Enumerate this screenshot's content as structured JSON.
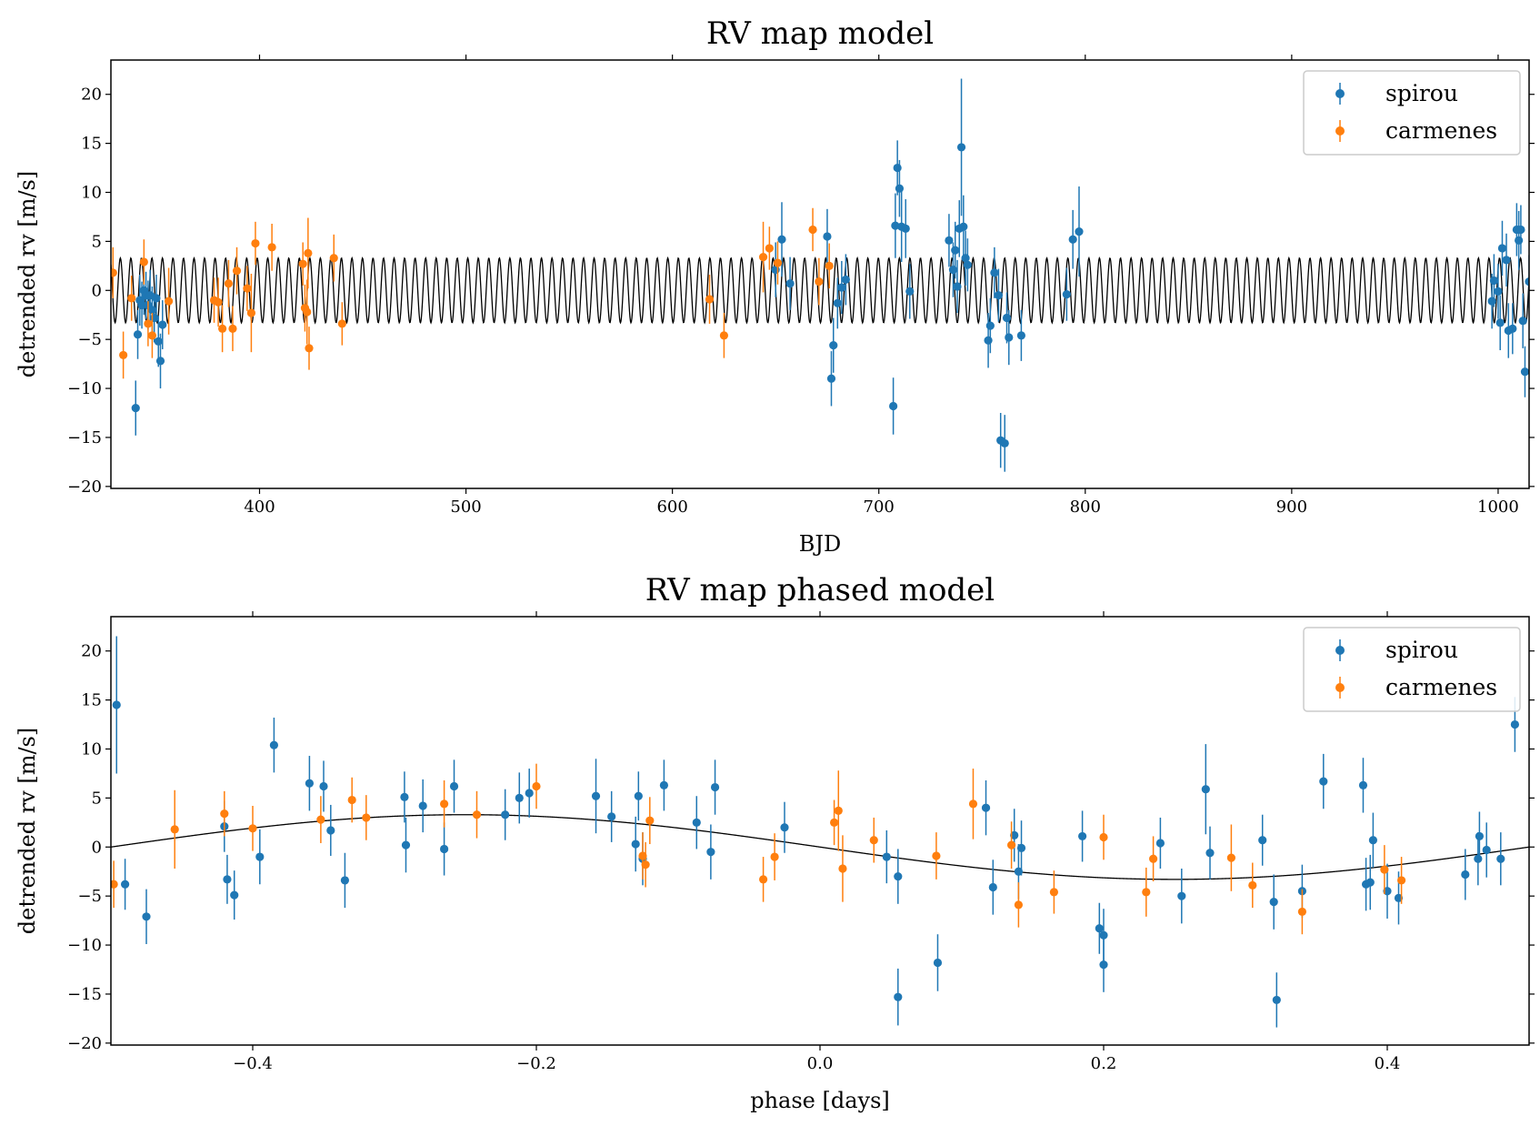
{
  "colors": {
    "spirou": "#1f77b4",
    "carmenes": "#ff7f0e",
    "model": "#000000"
  },
  "chart_data": [
    {
      "type": "scatter",
      "title": "RV map model",
      "xlabel": "BJD",
      "ylabel": "detrended rv [m/s]",
      "xlim": [
        328,
        1015
      ],
      "ylim": [
        -20.2,
        23.5
      ],
      "xticks": [
        400,
        500,
        600,
        700,
        800,
        900,
        1000
      ],
      "yticks": [
        -20,
        -15,
        -10,
        -5,
        0,
        5,
        10,
        15,
        20
      ],
      "legend_position": "top-right",
      "model": {
        "amplitude": 3.3,
        "period": 5.1,
        "t0": 331.3,
        "label": ""
      },
      "series": [
        {
          "name": "spirou",
          "color": "#1f77b4",
          "points": [
            [
              340,
              -12,
              2.8
            ],
            [
              341,
              -4.5,
              2.5
            ],
            [
              342,
              -1,
              2.6
            ],
            [
              343,
              -1.5,
              2.4
            ],
            [
              344,
              0,
              2.5
            ],
            [
              345,
              -0.5,
              2.4
            ],
            [
              346,
              -1.5,
              2.5
            ],
            [
              347,
              -0.5,
              2.6
            ],
            [
              348,
              -2,
              2.4
            ],
            [
              349,
              -2.8,
              2.5
            ],
            [
              350,
              -0.8,
              2.4
            ],
            [
              351,
              -5.2,
              2.6
            ],
            [
              352,
              -7.2,
              2.8
            ],
            [
              353,
              -3.5,
              2.5
            ],
            [
              650,
              2.1,
              2.8
            ],
            [
              653,
              5.2,
              3.8
            ],
            [
              657,
              0.7,
              2.7
            ],
            [
              675,
              5.5,
              2.8
            ],
            [
              677,
              -9,
              2.8
            ],
            [
              678,
              -5.6,
              2.8
            ],
            [
              680,
              -1.3,
              2.6
            ],
            [
              682,
              0.3,
              2.7
            ],
            [
              684,
              1.1,
              2.6
            ],
            [
              707,
              -11.8,
              2.9
            ],
            [
              708,
              6.6,
              3.3
            ],
            [
              709,
              12.5,
              2.8
            ],
            [
              710,
              10.4,
              2.9
            ],
            [
              711,
              6.5,
              3.6
            ],
            [
              713,
              6.3,
              3.0
            ],
            [
              715,
              -0.1,
              2.8
            ],
            [
              734,
              5.1,
              2.7
            ],
            [
              736,
              2.1,
              2.8
            ],
            [
              737,
              4.1,
              2.9
            ],
            [
              738,
              0.4,
              2.7
            ],
            [
              739,
              6.3,
              2.9
            ],
            [
              740,
              14.6,
              7.0
            ],
            [
              741,
              6.5,
              3.2
            ],
            [
              742,
              3.3,
              2.8
            ],
            [
              743,
              2.6,
              2.7
            ],
            [
              753,
              -5.1,
              2.8
            ],
            [
              754,
              -3.6,
              2.8
            ],
            [
              756,
              1.8,
              2.6
            ],
            [
              758,
              -0.5,
              2.7
            ],
            [
              759,
              -15.3,
              2.8
            ],
            [
              761,
              -15.6,
              2.9
            ],
            [
              762,
              -2.8,
              2.6
            ],
            [
              763,
              -4.8,
              2.8
            ],
            [
              769,
              -4.6,
              2.6
            ],
            [
              791,
              -0.4,
              2.7
            ],
            [
              794,
              5.2,
              3.0
            ],
            [
              797,
              6,
              4.6
            ],
            [
              997,
              -1.1,
              2.8
            ],
            [
              998,
              1,
              2.7
            ],
            [
              1000,
              -0.1,
              2.8
            ],
            [
              1001,
              -3.3,
              2.8
            ],
            [
              1002,
              4.3,
              2.8
            ],
            [
              1004,
              3.1,
              2.7
            ],
            [
              1005,
              -4.1,
              2.8
            ],
            [
              1007,
              -3.9,
              2.6
            ],
            [
              1009,
              6.2,
              2.7
            ],
            [
              1010,
              5.1,
              3.0
            ],
            [
              1011,
              6.2,
              2.5
            ],
            [
              1012,
              -3.1,
              2.8
            ],
            [
              1013,
              -8.3,
              2.6
            ],
            [
              1015,
              0.9,
              2.7
            ]
          ]
        },
        {
          "name": "carmenes",
          "color": "#ff7f0e",
          "points": [
            [
              329,
              1.8,
              2.6
            ],
            [
              334,
              -6.6,
              2.4
            ],
            [
              338,
              -0.8,
              2.3
            ],
            [
              344,
              2.9,
              2.3
            ],
            [
              346,
              -3.4,
              2.3
            ],
            [
              348,
              -4.6,
              2.3
            ],
            [
              356,
              -1.1,
              3.4
            ],
            [
              378,
              -1,
              2.3
            ],
            [
              380,
              -1.2,
              2.5
            ],
            [
              382,
              -3.9,
              2.4
            ],
            [
              385,
              0.7,
              2.4
            ],
            [
              387,
              -3.9,
              2.3
            ],
            [
              389,
              2,
              2.4
            ],
            [
              394,
              0.2,
              2.3
            ],
            [
              396,
              -2.3,
              4.0
            ],
            [
              398,
              4.8,
              2.2
            ],
            [
              406,
              4.4,
              2.4
            ],
            [
              421,
              2.7,
              2.2
            ],
            [
              422,
              -1.8,
              2.4
            ],
            [
              423,
              -2.2,
              3.3
            ],
            [
              423.5,
              3.8,
              3.6
            ],
            [
              424,
              -5.9,
              2.2
            ],
            [
              436,
              3.3,
              2.4
            ],
            [
              440,
              -3.4,
              2.2
            ],
            [
              618,
              -0.9,
              2.5
            ],
            [
              625,
              -4.6,
              2.3
            ],
            [
              644,
              3.4,
              3.6
            ],
            [
              647,
              4.3,
              2.2
            ],
            [
              651,
              2.8,
              2.2
            ],
            [
              668,
              6.2,
              2.2
            ],
            [
              671,
              0.9,
              2.4
            ],
            [
              676,
              2.5,
              2.3
            ]
          ]
        }
      ]
    },
    {
      "type": "scatter",
      "title": "RV map phased model",
      "xlabel": "phase [days]",
      "ylabel": "detrended rv [m/s]",
      "xlim": [
        -0.5,
        0.5
      ],
      "ylim": [
        -20.2,
        23.5
      ],
      "xticks": [
        -0.4,
        -0.2,
        0.0,
        0.2,
        0.4
      ],
      "xtick_labels": [
        "−0.4",
        "−0.2",
        "0.0",
        "0.2",
        "0.4"
      ],
      "yticks": [
        -20,
        -15,
        -10,
        -5,
        0,
        5,
        10,
        15,
        20
      ],
      "legend_position": "top-right",
      "model": {
        "amplitude": 3.3,
        "period": 1.0,
        "t0": -0.5,
        "label": ""
      },
      "series": [
        {
          "name": "spirou",
          "color": "#1f77b4",
          "points": [
            [
              -0.496,
              14.5,
              7.0
            ],
            [
              -0.49,
              -3.8,
              2.6
            ],
            [
              -0.475,
              -7.1,
              2.8
            ],
            [
              -0.42,
              2.1,
              2.6
            ],
            [
              -0.418,
              -3.3,
              2.5
            ],
            [
              -0.413,
              -4.9,
              2.5
            ],
            [
              -0.395,
              -1,
              2.8
            ],
            [
              -0.385,
              10.4,
              2.8
            ],
            [
              -0.36,
              6.5,
              2.8
            ],
            [
              -0.35,
              6.2,
              2.6
            ],
            [
              -0.345,
              1.7,
              2.6
            ],
            [
              -0.335,
              -3.4,
              2.8
            ],
            [
              -0.293,
              5.1,
              2.6
            ],
            [
              -0.292,
              0.2,
              2.8
            ],
            [
              -0.28,
              4.2,
              2.7
            ],
            [
              -0.265,
              -0.2,
              2.7
            ],
            [
              -0.258,
              6.2,
              2.7
            ],
            [
              -0.222,
              3.3,
              2.6
            ],
            [
              -0.212,
              5,
              2.6
            ],
            [
              -0.205,
              5.5,
              2.5
            ],
            [
              -0.158,
              5.2,
              3.8
            ],
            [
              -0.147,
              3.1,
              2.6
            ],
            [
              -0.13,
              0.3,
              2.8
            ],
            [
              -0.128,
              5.2,
              2.5
            ],
            [
              -0.125,
              -1.2,
              2.7
            ],
            [
              -0.11,
              6.3,
              2.6
            ],
            [
              -0.087,
              2.5,
              2.7
            ],
            [
              -0.077,
              -0.5,
              2.8
            ],
            [
              -0.074,
              6.1,
              2.8
            ],
            [
              -0.025,
              2,
              2.6
            ],
            [
              0.047,
              -1,
              2.7
            ],
            [
              0.055,
              -3,
              2.8
            ],
            [
              0.055,
              -15.3,
              2.9
            ],
            [
              0.083,
              -11.8,
              2.9
            ],
            [
              0.117,
              4,
              2.8
            ],
            [
              0.122,
              -4.1,
              2.8
            ],
            [
              0.137,
              1.2,
              2.7
            ],
            [
              0.14,
              -2.5,
              2.8
            ],
            [
              0.142,
              -0.1,
              2.8
            ],
            [
              0.185,
              1.1,
              2.6
            ],
            [
              0.197,
              -8.3,
              2.6
            ],
            [
              0.2,
              -9,
              2.7
            ],
            [
              0.2,
              -12,
              2.8
            ],
            [
              0.24,
              0.4,
              2.6
            ],
            [
              0.255,
              -5,
              2.8
            ],
            [
              0.272,
              5.9,
              4.6
            ],
            [
              0.275,
              -0.6,
              2.7
            ],
            [
              0.312,
              0.7,
              2.6
            ],
            [
              0.32,
              -5.6,
              2.8
            ],
            [
              0.322,
              -15.6,
              2.8
            ],
            [
              0.34,
              -4.5,
              2.7
            ],
            [
              0.355,
              6.7,
              2.8
            ],
            [
              0.383,
              6.3,
              2.8
            ],
            [
              0.385,
              -3.8,
              2.7
            ],
            [
              0.388,
              -3.6,
              2.8
            ],
            [
              0.39,
              0.7,
              2.8
            ],
            [
              0.4,
              -4.5,
              2.8
            ],
            [
              0.408,
              -5.2,
              2.7
            ],
            [
              0.455,
              -2.8,
              2.6
            ],
            [
              0.464,
              -1.2,
              2.7
            ],
            [
              0.465,
              1.1,
              2.5
            ],
            [
              0.47,
              -0.3,
              2.8
            ],
            [
              0.48,
              -1.2,
              2.7
            ],
            [
              0.49,
              12.5,
              2.8
            ]
          ]
        },
        {
          "name": "carmenes",
          "color": "#ff7f0e",
          "points": [
            [
              -0.498,
              -3.8,
              2.4
            ],
            [
              -0.455,
              1.8,
              4.0
            ],
            [
              -0.42,
              3.4,
              2.3
            ],
            [
              -0.4,
              1.9,
              2.3
            ],
            [
              -0.352,
              2.8,
              2.4
            ],
            [
              -0.33,
              4.8,
              2.3
            ],
            [
              -0.32,
              3.0,
              2.3
            ],
            [
              -0.265,
              4.4,
              2.4
            ],
            [
              -0.242,
              3.3,
              2.4
            ],
            [
              -0.2,
              6.2,
              2.3
            ],
            [
              -0.125,
              -0.9,
              2.4
            ],
            [
              -0.123,
              -1.8,
              2.3
            ],
            [
              -0.12,
              2.7,
              2.4
            ],
            [
              -0.04,
              -3.3,
              2.3
            ],
            [
              -0.032,
              -1,
              2.4
            ],
            [
              0.01,
              2.5,
              2.3
            ],
            [
              0.013,
              3.7,
              4.1
            ],
            [
              0.016,
              -2.2,
              3.4
            ],
            [
              0.038,
              0.7,
              2.3
            ],
            [
              0.082,
              -0.9,
              2.4
            ],
            [
              0.108,
              4.4,
              3.6
            ],
            [
              0.135,
              0.2,
              2.4
            ],
            [
              0.14,
              -5.9,
              2.3
            ],
            [
              0.165,
              -4.6,
              2.2
            ],
            [
              0.2,
              1,
              2.3
            ],
            [
              0.23,
              -4.6,
              2.5
            ],
            [
              0.235,
              -1.2,
              2.3
            ],
            [
              0.29,
              -1.1,
              3.4
            ],
            [
              0.305,
              -3.9,
              2.3
            ],
            [
              0.34,
              -6.6,
              2.3
            ],
            [
              0.398,
              -2.3,
              2.5
            ],
            [
              0.41,
              -3.4,
              2.4
            ]
          ]
        }
      ]
    }
  ]
}
